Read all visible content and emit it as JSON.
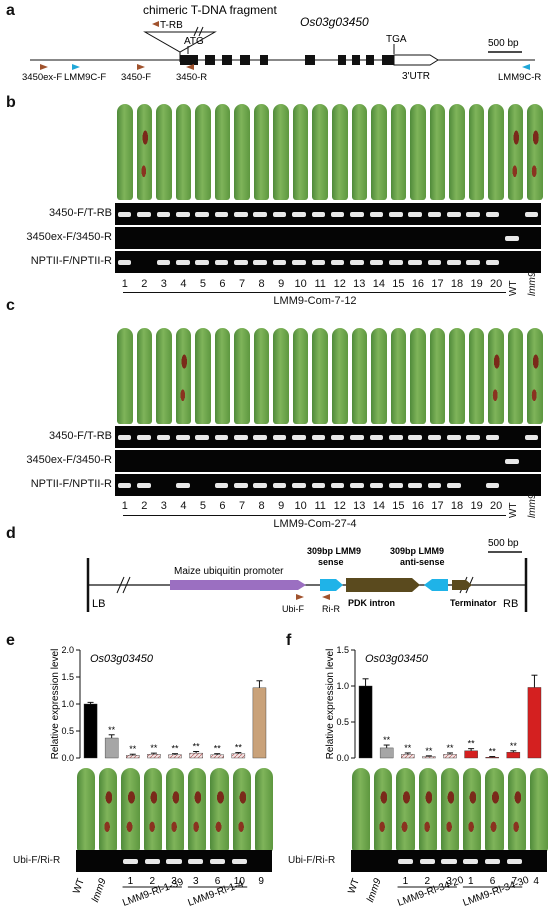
{
  "panel_a": {
    "label": "a",
    "title": "chimeric T-DNA fragment",
    "gene": "Os03g03450",
    "trb": "T-RB",
    "atg": "ATG",
    "tga": "TGA",
    "utr": "3'UTR",
    "scale": "500 bp",
    "primers": [
      "3450ex-F",
      "LMM9C-F",
      "3450-F",
      "3450-R",
      "LMM9C-R"
    ],
    "colors": {
      "brown": "#a0522d",
      "cyan": "#1fa7d8"
    }
  },
  "panel_b": {
    "label": "b",
    "gel_rows": [
      "3450-F/T-RB",
      "3450ex-F/3450-R",
      "NPTII-F/NPTII-R"
    ],
    "lanes": [
      "1",
      "2",
      "3",
      "4",
      "5",
      "6",
      "7",
      "8",
      "9",
      "10",
      "11",
      "12",
      "13",
      "14",
      "15",
      "16",
      "17",
      "18",
      "19",
      "20"
    ],
    "wt": "WT",
    "mut": "lmm9",
    "line": "LMM9-Com-7-12"
  },
  "panel_c": {
    "label": "c",
    "gel_rows": [
      "3450-F/T-RB",
      "3450ex-F/3450-R",
      "NPTII-F/NPTII-R"
    ],
    "lanes": [
      "1",
      "2",
      "3",
      "4",
      "5",
      "6",
      "7",
      "8",
      "9",
      "10",
      "11",
      "12",
      "13",
      "14",
      "15",
      "16",
      "17",
      "18",
      "19",
      "20"
    ],
    "wt": "WT",
    "mut": "lmm9",
    "line": "LMM9-Com-27-4"
  },
  "panel_d": {
    "label": "d",
    "lb": "LB",
    "rb": "RB",
    "promoter": "Maize ubiquitin promoter",
    "sense_line1": "309bp LMM9",
    "sense_line2": "sense",
    "antisense_line1": "309bp LMM9",
    "antisense_line2": "anti-sense",
    "intron": "PDK intron",
    "terminator": "Terminator",
    "ubi_f": "Ubi-F",
    "ri_r": "Ri-R",
    "scale": "500 bp",
    "colors": {
      "promoter": "#9b6fc1",
      "sense": "#1fb3e8",
      "intron": "#5a4a1e"
    }
  },
  "panel_e": {
    "label": "e",
    "gene": "Os03g03450",
    "ylabel": "Relative expression level",
    "gel_label": "Ubi-F/Ri-R",
    "lane_labels": [
      "WT",
      "lmm9",
      "1",
      "2",
      "3",
      "3",
      "6",
      "10",
      "9"
    ],
    "group1": "LMM9-Ri-1-39",
    "group2": "LMM9-Ri-1-4",
    "sig": "**",
    "chart_data": {
      "type": "bar",
      "categories": [
        "WT",
        "lmm9",
        "1",
        "2",
        "3",
        "3",
        "6",
        "10",
        "9"
      ],
      "values": [
        1.0,
        0.37,
        0.05,
        0.07,
        0.06,
        0.09,
        0.06,
        0.08,
        1.3
      ],
      "errors": [
        0.03,
        0.06,
        0.02,
        0.02,
        0.02,
        0.03,
        0.02,
        0.02,
        0.13
      ],
      "ylim": [
        0,
        2.0
      ],
      "yticks": [
        "0.0",
        "0.5",
        "1.0",
        "1.5",
        "2.0"
      ]
    }
  },
  "panel_f": {
    "label": "f",
    "gene": "Os03g03450",
    "ylabel": "Relative expression level",
    "gel_label": "Ubi-F/Ri-R",
    "lane_labels": [
      "WT",
      "lmm9",
      "1",
      "2",
      "3",
      "1",
      "6",
      "7",
      "4"
    ],
    "group1": "LMM9-Ri-34-20",
    "group2": "LMM9-Ri-34-30",
    "sig": "**",
    "chart_data": {
      "type": "bar",
      "categories": [
        "WT",
        "lmm9",
        "1",
        "2",
        "3",
        "1",
        "6",
        "7",
        "4"
      ],
      "values": [
        1.0,
        0.14,
        0.05,
        0.02,
        0.05,
        0.1,
        0.01,
        0.08,
        0.98
      ],
      "errors": [
        0.1,
        0.04,
        0.02,
        0.01,
        0.02,
        0.03,
        0.01,
        0.02,
        0.17
      ],
      "ylim": [
        0,
        1.5
      ],
      "yticks": [
        "0.0",
        "0.5",
        "1.0",
        "1.5"
      ]
    }
  }
}
